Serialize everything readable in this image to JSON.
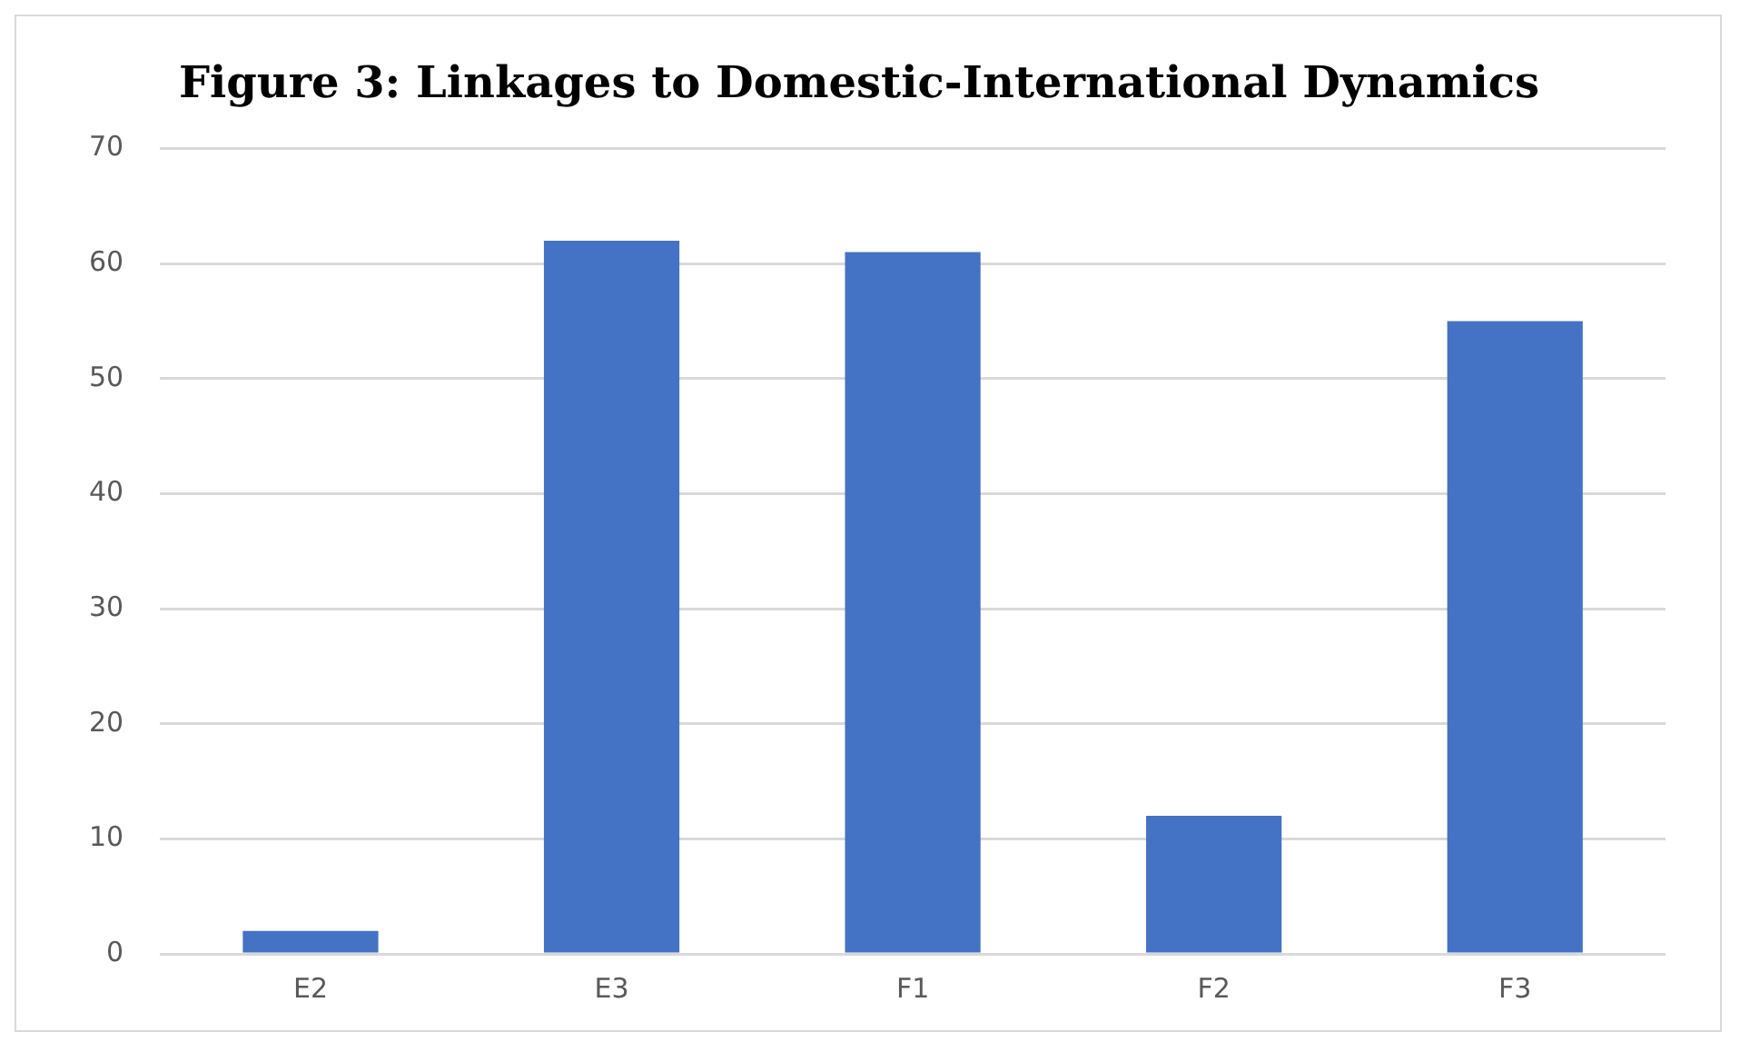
{
  "chart_data": {
    "type": "bar",
    "title": "Figure 3: Linkages to Domestic-International Dynamics",
    "categories": [
      "E2",
      "E3",
      "F1",
      "F2",
      "F3"
    ],
    "values": [
      2,
      62,
      61,
      12,
      55
    ],
    "color": "#4472c4",
    "ylim": [
      0,
      70
    ],
    "yticks": [
      0,
      10,
      20,
      30,
      40,
      50,
      60,
      70
    ],
    "grid": "y"
  }
}
